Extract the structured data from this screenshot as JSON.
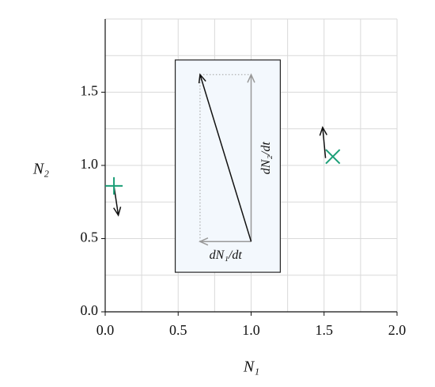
{
  "chart_data": {
    "type": "vector",
    "xlabel": "N₁",
    "ylabel": "N₂",
    "xlim": [
      0,
      2
    ],
    "ylim": [
      0,
      2
    ],
    "xticks": [
      {
        "value": 0,
        "label": "0.0"
      },
      0.5,
      {
        "value": 1,
        "label": "1.0"
      },
      1.5,
      {
        "value": 2,
        "label": "2.0"
      }
    ],
    "yticks": [
      {
        "value": 0,
        "label": "0.0"
      },
      0.5,
      {
        "value": 1,
        "label": "1.0"
      },
      1.5
    ],
    "grid_xticks": [
      0.25,
      0.5,
      0.75,
      1,
      1.25,
      1.5,
      1.75,
      2
    ],
    "grid_yticks": [
      0.25,
      0.5,
      0.75,
      1,
      1.25,
      1.5,
      1.75,
      2
    ],
    "box": {
      "x": [
        0.48,
        1.2
      ],
      "y": [
        0.27,
        1.72
      ],
      "color": "#f3f8fd"
    },
    "points": [
      {
        "marker": "+",
        "x": 0.06,
        "y": 0.86,
        "color": "#1b9e77"
      },
      {
        "marker": "x",
        "x": 1.56,
        "y": 1.06,
        "color": "#1b9e77"
      }
    ],
    "arrows": [
      {
        "x": [
          0.06,
          0.09
        ],
        "y": [
          0.86,
          0.66
        ],
        "color": "#111111"
      },
      {
        "x": [
          1.51,
          1.49
        ],
        "y": [
          1.05,
          1.26
        ],
        "color": "#111111"
      },
      {
        "x": [
          1.0,
          0.65
        ],
        "y": [
          0.48,
          0.48
        ],
        "color": "#999999",
        "label": "dN₁/dt"
      },
      {
        "x": [
          1.0,
          1.0
        ],
        "y": [
          0.48,
          1.62
        ],
        "color": "#999999",
        "label": "dN₂/dt"
      },
      {
        "x": [
          1.0,
          0.65
        ],
        "y": [
          0.48,
          1.62
        ],
        "color": "#111111"
      }
    ],
    "dotted": [
      {
        "x": [
          0.65,
          0.65
        ],
        "y": [
          0.48,
          1.62
        ],
        "color": "#aaaaaa"
      },
      {
        "x": [
          0.65,
          1.0
        ],
        "y": [
          1.62,
          1.62
        ],
        "color": "#aaaaaa"
      }
    ]
  }
}
